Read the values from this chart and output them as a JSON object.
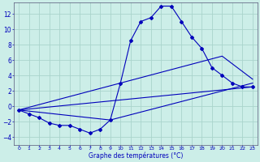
{
  "xlabel": "Graphe des températures (°C)",
  "background_color": "#cceee8",
  "grid_color": "#aad4cc",
  "line_color": "#0000bb",
  "xlim": [
    -0.5,
    23.5
  ],
  "ylim": [
    -5,
    13.5
  ],
  "yticks": [
    -4,
    -2,
    0,
    2,
    4,
    6,
    8,
    10,
    12
  ],
  "xticks": [
    0,
    1,
    2,
    3,
    4,
    5,
    6,
    7,
    8,
    9,
    10,
    11,
    12,
    13,
    14,
    15,
    16,
    17,
    18,
    19,
    20,
    21,
    22,
    23
  ],
  "series": {
    "main_x": [
      0,
      1,
      2,
      3,
      4,
      5,
      6,
      7,
      8,
      9,
      10,
      11,
      12,
      13,
      14,
      15,
      16,
      17,
      18,
      19,
      20,
      21,
      22,
      23
    ],
    "main_y": [
      -0.5,
      -1.0,
      -1.5,
      -2.2,
      -2.5,
      -2.5,
      -3.0,
      -3.5,
      -3.0,
      -1.8,
      3.0,
      8.5,
      11.0,
      11.5,
      13.0,
      13.0,
      11.0,
      9.0,
      7.5,
      5.0,
      4.0,
      3.0,
      2.5,
      2.5
    ],
    "line2_x": [
      0,
      23
    ],
    "line2_y": [
      -0.5,
      2.5
    ],
    "line3_x": [
      0,
      9,
      23
    ],
    "line3_y": [
      -0.5,
      -1.8,
      3.0
    ],
    "line4_x": [
      0,
      20,
      23
    ],
    "line4_y": [
      -0.5,
      6.5,
      3.5
    ]
  }
}
